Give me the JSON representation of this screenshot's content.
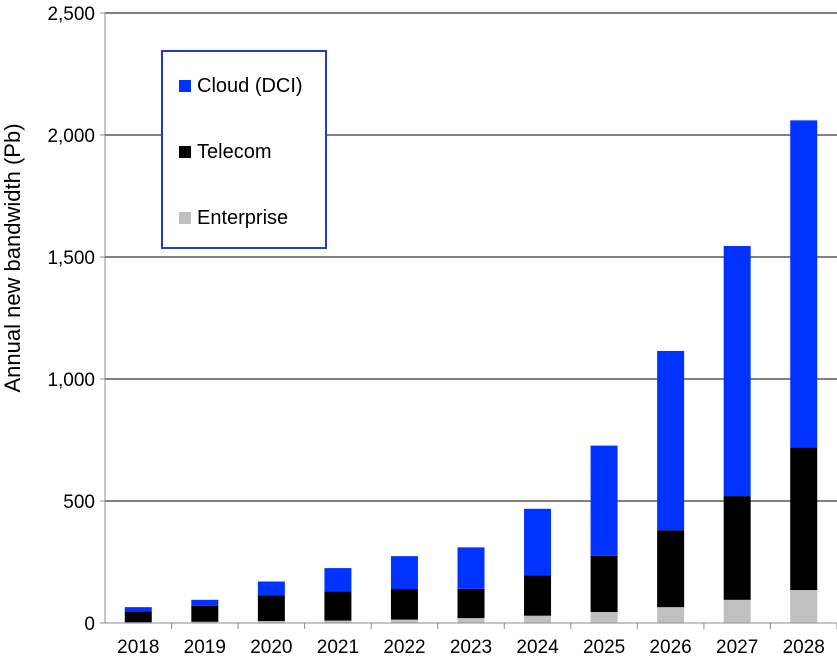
{
  "chart_data": {
    "type": "bar",
    "stacked": true,
    "ylabel": "Annual new bandwidth (Pb)",
    "xlabel": "",
    "ylim": [
      0,
      2500
    ],
    "yticks": [
      "0",
      "500",
      "1,000",
      "1,500",
      "2,000",
      "2,500"
    ],
    "ytick_values": [
      0,
      500,
      1000,
      1500,
      2000,
      2500
    ],
    "categories": [
      "2018",
      "2019",
      "2020",
      "2021",
      "2022",
      "2023",
      "2024",
      "2025",
      "2026",
      "2027",
      "2028"
    ],
    "grid": true,
    "legend_position": "top-left",
    "series": [
      {
        "name": "Enterprise",
        "color": "#c0c0c0",
        "values": [
          3,
          5,
          8,
          10,
          14,
          20,
          30,
          45,
          65,
          95,
          135
        ]
      },
      {
        "name": "Telecom",
        "color": "#000000",
        "values": [
          45,
          65,
          105,
          120,
          125,
          120,
          165,
          230,
          315,
          425,
          585
        ]
      },
      {
        "name": "Cloud (DCI)",
        "color": "#0033ff",
        "values": [
          17,
          25,
          57,
          95,
          135,
          170,
          273,
          452,
          735,
          1025,
          1340
        ]
      }
    ]
  },
  "legend": {
    "items": [
      {
        "label": "Cloud (DCI)",
        "color": "#0033ff"
      },
      {
        "label": "Telecom",
        "color": "#000000"
      },
      {
        "label": "Enterprise",
        "color": "#c0c0c0"
      }
    ]
  }
}
